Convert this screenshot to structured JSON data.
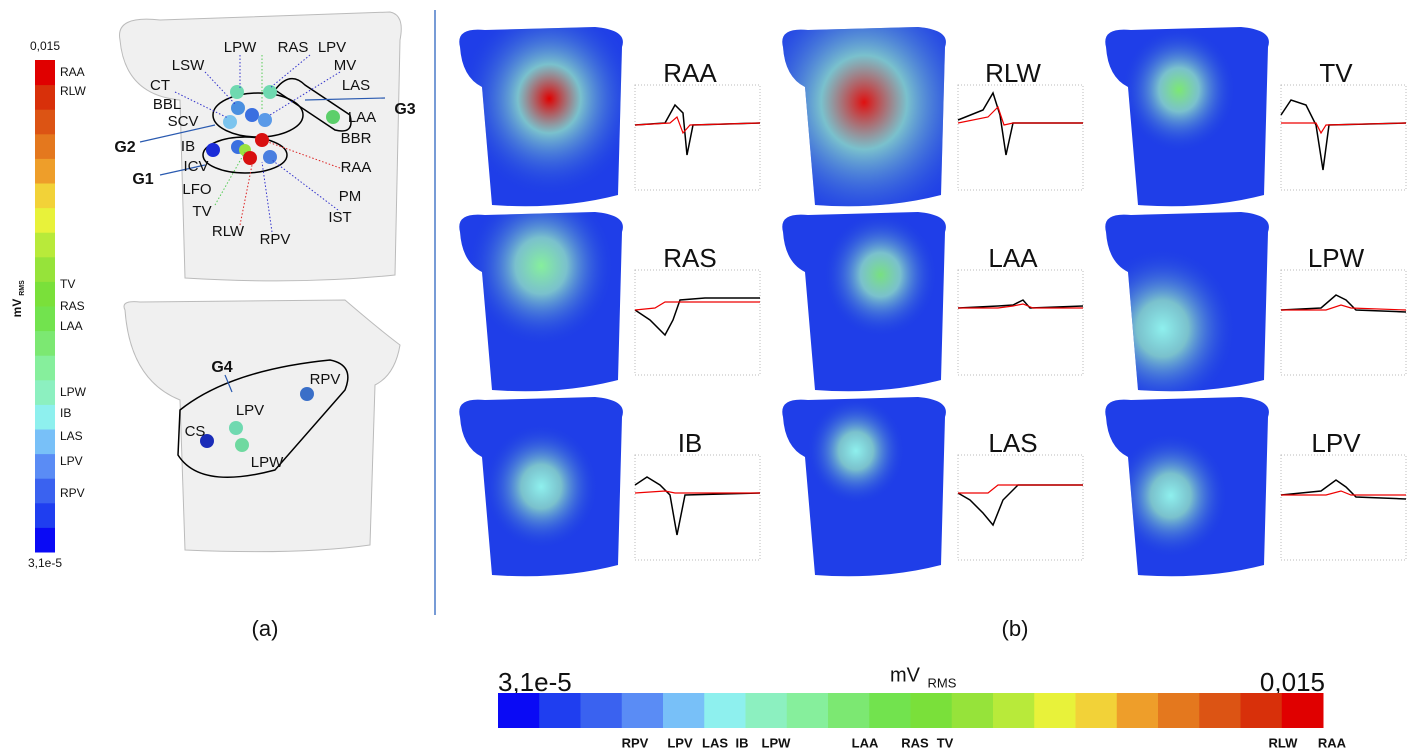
{
  "colorbar_colors": [
    "#0a0af5",
    "#1f3ef0",
    "#3a62f0",
    "#5a8cf5",
    "#78c0f8",
    "#8ef0ee",
    "#8cf0c0",
    "#86ef9c",
    "#7ce872",
    "#72e34e",
    "#7ae03a",
    "#96e33a",
    "#b8ea3a",
    "#e8f23a",
    "#f2d238",
    "#ee9e2a",
    "#e4781e",
    "#dc5414",
    "#d8300a",
    "#e00000"
  ],
  "panel_a": {
    "colorbar": {
      "max_label": "0,015",
      "min_label": "3,1e-5",
      "unit": "mV",
      "unit_sub": "RMS",
      "labels": [
        "RAA",
        "RLW",
        "TV",
        "RAS",
        "LAA",
        "LPW",
        "IB",
        "LAS",
        "LPV",
        "RPV"
      ]
    },
    "torso_top_labels": [
      "LPW",
      "RAS",
      "LPV",
      "LSW",
      "MV",
      "CT",
      "LAS",
      "BBL",
      "SCV",
      "LAA",
      "BBR",
      "IB",
      "ICV",
      "RAA",
      "LFO",
      "PM",
      "TV",
      "IST",
      "RLW",
      "RPV"
    ],
    "groups": [
      "G1",
      "G2",
      "G3"
    ],
    "torso_bottom_labels": [
      "RPV",
      "LPV",
      "CS",
      "LPW"
    ],
    "group_bottom": "G4",
    "caption": "(a)"
  },
  "panel_b": {
    "maps": [
      "RAA",
      "RLW",
      "TV",
      "RAS",
      "LAA",
      "LPW",
      "IB",
      "LAS",
      "LPV"
    ],
    "caption": "(b)"
  },
  "colorbar": {
    "min_label": "3,1e-5",
    "max_label": "0,015",
    "unit": "mV",
    "unit_sub": "RMS",
    "labels": [
      "RPV",
      "LPV",
      "LAS",
      "IB",
      "LPW",
      "LAA",
      "RAS",
      "TV",
      "RLW",
      "RAA"
    ]
  }
}
